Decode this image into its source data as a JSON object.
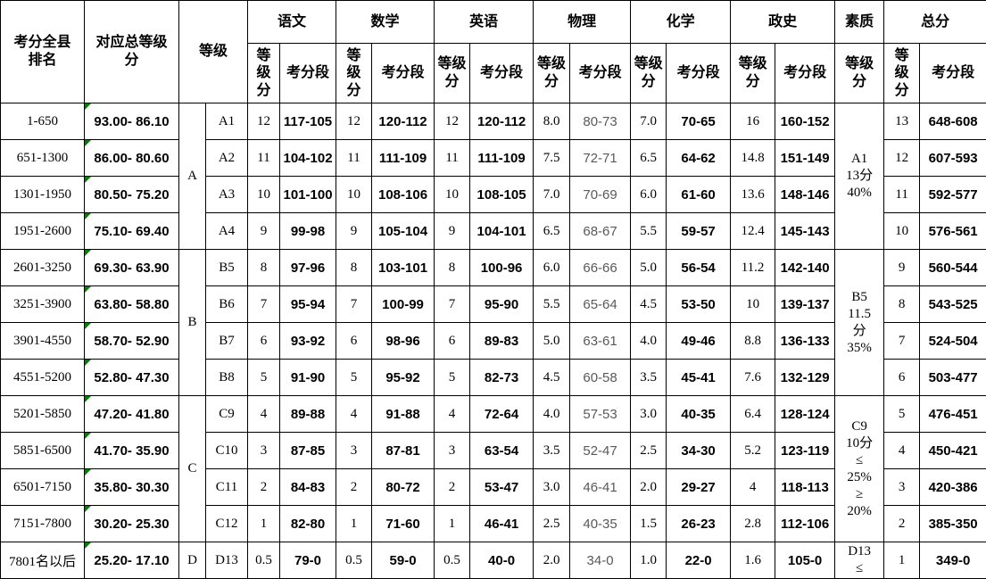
{
  "table": {
    "colors": {
      "cell_marker_triangle": "#008000",
      "physics_range_text": "#595959",
      "border": "#000000",
      "background": "#ffffff"
    },
    "header": {
      "rank": "考分全县\n排名",
      "total_grade": "对应总等级\n分",
      "grade": "等级",
      "subjects": [
        {
          "name": "语文",
          "score": "等\n级\n分",
          "range": "考分段"
        },
        {
          "name": "数学",
          "score": "等\n级\n分",
          "range": "考分段"
        },
        {
          "name": "英语",
          "score": "等级\n分",
          "range": "考分段"
        },
        {
          "name": "物理",
          "score": "等级\n分",
          "range": "考分段"
        },
        {
          "name": "化学",
          "score": "等级\n分",
          "range": "考分段"
        },
        {
          "name": "政史",
          "score": "等级\n分",
          "range": "考分段"
        }
      ],
      "quality": {
        "name": "素质",
        "score": "等级\n分"
      },
      "total": {
        "name": "总分",
        "score": "等\n级\n分",
        "range": "考分段"
      }
    },
    "groups": [
      {
        "letter": "A",
        "quality": "A1\n13分\n40%",
        "rows": [
          {
            "rank": "1-650",
            "total_grade": "93.00- 86.10",
            "sub": "A1",
            "cells": [
              [
                "12",
                "117-105"
              ],
              [
                "12",
                "120-112"
              ],
              [
                "12",
                "120-112"
              ],
              [
                "8.0",
                "80-73"
              ],
              [
                "7.0",
                "70-65"
              ],
              [
                "16",
                "160-152"
              ]
            ],
            "total": [
              "13",
              "648-608"
            ]
          },
          {
            "rank": "651-1300",
            "total_grade": "86.00- 80.60",
            "sub": "A2",
            "cells": [
              [
                "11",
                "104-102"
              ],
              [
                "11",
                "111-109"
              ],
              [
                "11",
                "111-109"
              ],
              [
                "7.5",
                "72-71"
              ],
              [
                "6.5",
                "64-62"
              ],
              [
                "14.8",
                "151-149"
              ]
            ],
            "total": [
              "12",
              "607-593"
            ]
          },
          {
            "rank": "1301-1950",
            "total_grade": "80.50- 75.20",
            "sub": "A3",
            "cells": [
              [
                "10",
                "101-100"
              ],
              [
                "10",
                "108-106"
              ],
              [
                "10",
                "108-105"
              ],
              [
                "7.0",
                "70-69"
              ],
              [
                "6.0",
                "61-60"
              ],
              [
                "13.6",
                "148-146"
              ]
            ],
            "total": [
              "11",
              "592-577"
            ]
          },
          {
            "rank": "1951-2600",
            "total_grade": "75.10- 69.40",
            "sub": "A4",
            "cells": [
              [
                "9",
                "99-98"
              ],
              [
                "9",
                "105-104"
              ],
              [
                "9",
                "104-101"
              ],
              [
                "6.5",
                "68-67"
              ],
              [
                "5.5",
                "59-57"
              ],
              [
                "12.4",
                "145-143"
              ]
            ],
            "total": [
              "10",
              "576-561"
            ]
          }
        ]
      },
      {
        "letter": "B",
        "quality": "B5\n11.5\n分\n35%",
        "rows": [
          {
            "rank": "2601-3250",
            "total_grade": "69.30- 63.90",
            "sub": "B5",
            "cells": [
              [
                "8",
                "97-96"
              ],
              [
                "8",
                "103-101"
              ],
              [
                "8",
                "100-96"
              ],
              [
                "6.0",
                "66-66"
              ],
              [
                "5.0",
                "56-54"
              ],
              [
                "11.2",
                "142-140"
              ]
            ],
            "total": [
              "9",
              "560-544"
            ]
          },
          {
            "rank": "3251-3900",
            "total_grade": "63.80- 58.80",
            "sub": "B6",
            "cells": [
              [
                "7",
                "95-94"
              ],
              [
                "7",
                "100-99"
              ],
              [
                "7",
                "95-90"
              ],
              [
                "5.5",
                "65-64"
              ],
              [
                "4.5",
                "53-50"
              ],
              [
                "10",
                "139-137"
              ]
            ],
            "total": [
              "8",
              "543-525"
            ]
          },
          {
            "rank": "3901-4550",
            "total_grade": "58.70- 52.90",
            "sub": "B7",
            "cells": [
              [
                "6",
                "93-92"
              ],
              [
                "6",
                "98-96"
              ],
              [
                "6",
                "89-83"
              ],
              [
                "5.0",
                "63-61"
              ],
              [
                "4.0",
                "49-46"
              ],
              [
                "8.8",
                "136-133"
              ]
            ],
            "total": [
              "7",
              "524-504"
            ]
          },
          {
            "rank": "4551-5200",
            "total_grade": "52.80- 47.30",
            "sub": "B8",
            "cells": [
              [
                "5",
                "91-90"
              ],
              [
                "5",
                "95-92"
              ],
              [
                "5",
                "82-73"
              ],
              [
                "4.5",
                "60-58"
              ],
              [
                "3.5",
                "45-41"
              ],
              [
                "7.6",
                "132-129"
              ]
            ],
            "total": [
              "6",
              "503-477"
            ]
          }
        ]
      },
      {
        "letter": "C",
        "quality": "C9\n10分\n≤\n25%\n≥\n20%",
        "rows": [
          {
            "rank": "5201-5850",
            "total_grade": "47.20- 41.80",
            "sub": "C9",
            "cells": [
              [
                "4",
                "89-88"
              ],
              [
                "4",
                "91-88"
              ],
              [
                "4",
                "72-64"
              ],
              [
                "4.0",
                "57-53"
              ],
              [
                "3.0",
                "40-35"
              ],
              [
                "6.4",
                "128-124"
              ]
            ],
            "total": [
              "5",
              "476-451"
            ]
          },
          {
            "rank": "5851-6500",
            "total_grade": "41.70- 35.90",
            "sub": "C10",
            "cells": [
              [
                "3",
                "87-85"
              ],
              [
                "3",
                "87-81"
              ],
              [
                "3",
                "63-54"
              ],
              [
                "3.5",
                "52-47"
              ],
              [
                "2.5",
                "34-30"
              ],
              [
                "5.2",
                "123-119"
              ]
            ],
            "total": [
              "4",
              "450-421"
            ]
          },
          {
            "rank": "6501-7150",
            "total_grade": "35.80- 30.30",
            "sub": "C11",
            "cells": [
              [
                "2",
                "84-83"
              ],
              [
                "2",
                "80-72"
              ],
              [
                "2",
                "53-47"
              ],
              [
                "3.0",
                "46-41"
              ],
              [
                "2.0",
                "29-27"
              ],
              [
                "4",
                "118-113"
              ]
            ],
            "total": [
              "3",
              "420-386"
            ]
          },
          {
            "rank": "7151-7800",
            "total_grade": "30.20- 25.30",
            "sub": "C12",
            "cells": [
              [
                "1",
                "82-80"
              ],
              [
                "1",
                "71-60"
              ],
              [
                "1",
                "46-41"
              ],
              [
                "2.5",
                "40-35"
              ],
              [
                "1.5",
                "26-23"
              ],
              [
                "2.8",
                "112-106"
              ]
            ],
            "total": [
              "2",
              "385-350"
            ]
          }
        ]
      },
      {
        "letter": "D",
        "quality": "D13\n≤",
        "rows": [
          {
            "rank": "7801名以后",
            "total_grade": "25.20- 17.10",
            "sub": "D13",
            "cells": [
              [
                "0.5",
                "79-0"
              ],
              [
                "0.5",
                "59-0"
              ],
              [
                "0.5",
                "40-0"
              ],
              [
                "2.0",
                "34-0"
              ],
              [
                "1.0",
                "22-0"
              ],
              [
                "1.6",
                "105-0"
              ]
            ],
            "total": [
              "1",
              "349-0"
            ]
          }
        ]
      }
    ]
  }
}
